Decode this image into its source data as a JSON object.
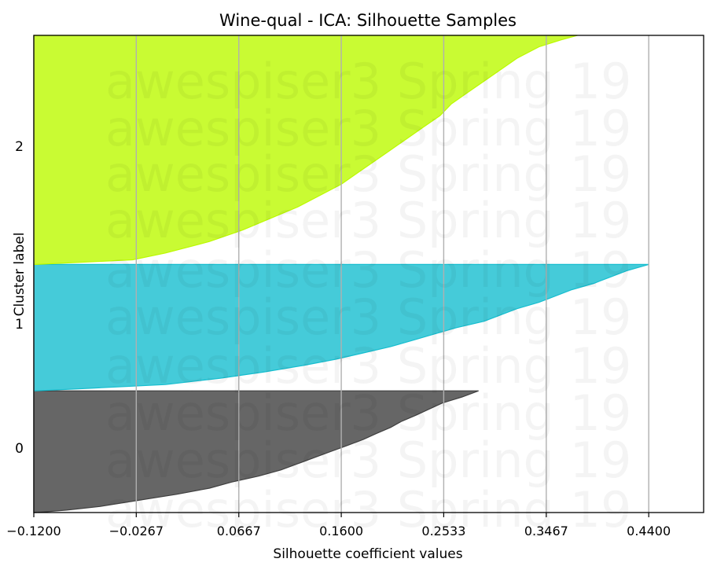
{
  "chart_data": {
    "type": "area",
    "title": "Wine-qual - ICA: Silhouette Samples",
    "xlabel": "Silhouette coefficient values",
    "ylabel": "Cluster label",
    "xlim": [
      -0.12,
      0.49
    ],
    "xticks": [
      -0.12,
      -0.0267,
      0.0667,
      0.16,
      0.2533,
      0.3467,
      0.44
    ],
    "xtick_labels": [
      "−0.1200",
      "−0.0267",
      "0.0667",
      "0.1600",
      "0.2533",
      "0.3467",
      "0.4400"
    ],
    "grid": "vertical",
    "watermark": "awespiser3 Spring 19",
    "clusters": [
      {
        "label": "0",
        "color": "#404040",
        "y_range": [
          0.0,
          0.255
        ],
        "profile_y": [
          0.0,
          0.02,
          0.05,
          0.1,
          0.15,
          0.2,
          0.25,
          0.3,
          0.35,
          0.4,
          0.45,
          0.5,
          0.55,
          0.6,
          0.65,
          0.7,
          0.75,
          0.8,
          0.85,
          0.9,
          0.95,
          1.0
        ],
        "silhouette_values": [
          -0.118,
          -0.09,
          -0.06,
          -0.025,
          0.01,
          0.04,
          0.06,
          0.085,
          0.105,
          0.12,
          0.135,
          0.15,
          0.165,
          0.18,
          0.192,
          0.205,
          0.215,
          0.228,
          0.24,
          0.252,
          0.27,
          0.285
        ]
      },
      {
        "label": "1",
        "color": "#17becf",
        "y_range": [
          0.255,
          0.52
        ],
        "profile_y": [
          0.0,
          0.02,
          0.05,
          0.1,
          0.15,
          0.2,
          0.25,
          0.3,
          0.35,
          0.4,
          0.45,
          0.5,
          0.55,
          0.6,
          0.65,
          0.7,
          0.75,
          0.8,
          0.85,
          0.9,
          0.95,
          1.0
        ],
        "silhouette_values": [
          -0.118,
          -0.07,
          0.0,
          0.05,
          0.09,
          0.125,
          0.155,
          0.18,
          0.205,
          0.225,
          0.245,
          0.265,
          0.29,
          0.305,
          0.32,
          0.34,
          0.355,
          0.37,
          0.39,
          0.405,
          0.42,
          0.44
        ]
      },
      {
        "label": "2",
        "color": "#bcfa00",
        "y_range": [
          0.52,
          1.0
        ],
        "profile_y": [
          0.0,
          0.02,
          0.05,
          0.1,
          0.15,
          0.2,
          0.25,
          0.3,
          0.35,
          0.4,
          0.45,
          0.5,
          0.55,
          0.6,
          0.65,
          0.7,
          0.75,
          0.8,
          0.85,
          0.9,
          0.95,
          0.98,
          1.0
        ],
        "silhouette_values": [
          -0.118,
          -0.03,
          0.0,
          0.04,
          0.07,
          0.095,
          0.12,
          0.14,
          0.16,
          0.175,
          0.19,
          0.205,
          0.22,
          0.235,
          0.25,
          0.26,
          0.275,
          0.29,
          0.305,
          0.32,
          0.34,
          0.36,
          0.375
        ]
      }
    ]
  }
}
